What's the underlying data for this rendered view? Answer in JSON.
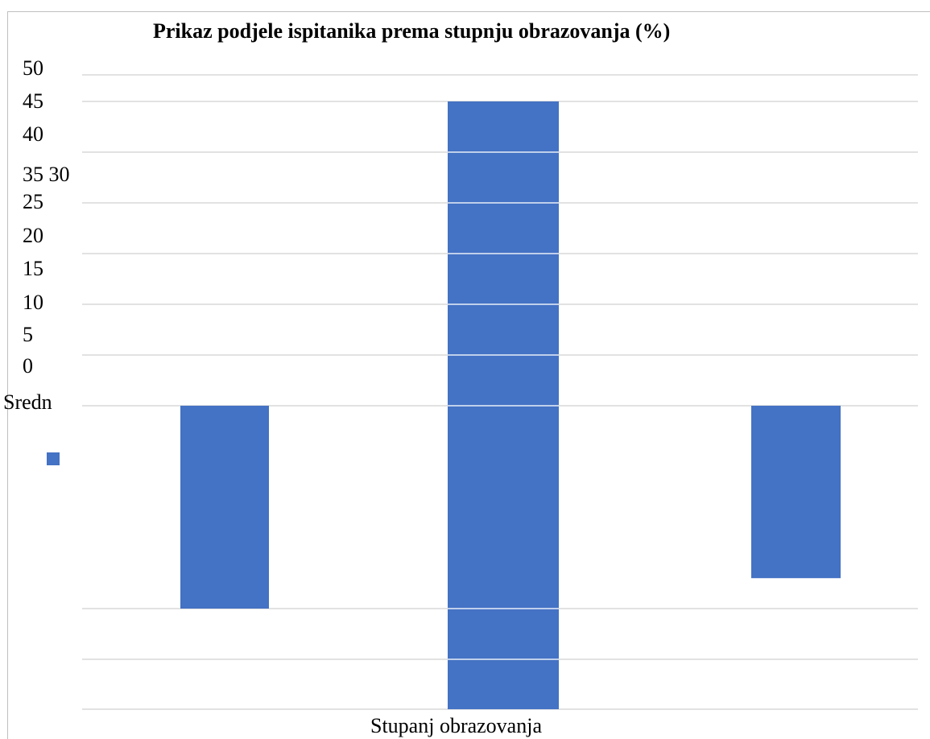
{
  "header_fragment": "",
  "chart_data": {
    "type": "bar",
    "title": "Prikaz podjele ispitanika prema stupnju obrazovanja (%)",
    "xlabel": "Stupanj obrazovanja",
    "ylabel": "",
    "y_tick_labels": [
      "50",
      "45",
      "40",
      "35 30",
      "25",
      "20",
      "15",
      "10",
      "5",
      "0"
    ],
    "category_label_visible": "Sredn",
    "categories": [
      "Sredn",
      "",
      ""
    ],
    "values": [
      40,
      60,
      34
    ],
    "ylim": [
      -60,
      60
    ],
    "grid": true,
    "legend": "left",
    "colors": {
      "bar": "#4472c4",
      "grid": "#d9d9d9",
      "frame": "#bfbfbf"
    }
  }
}
